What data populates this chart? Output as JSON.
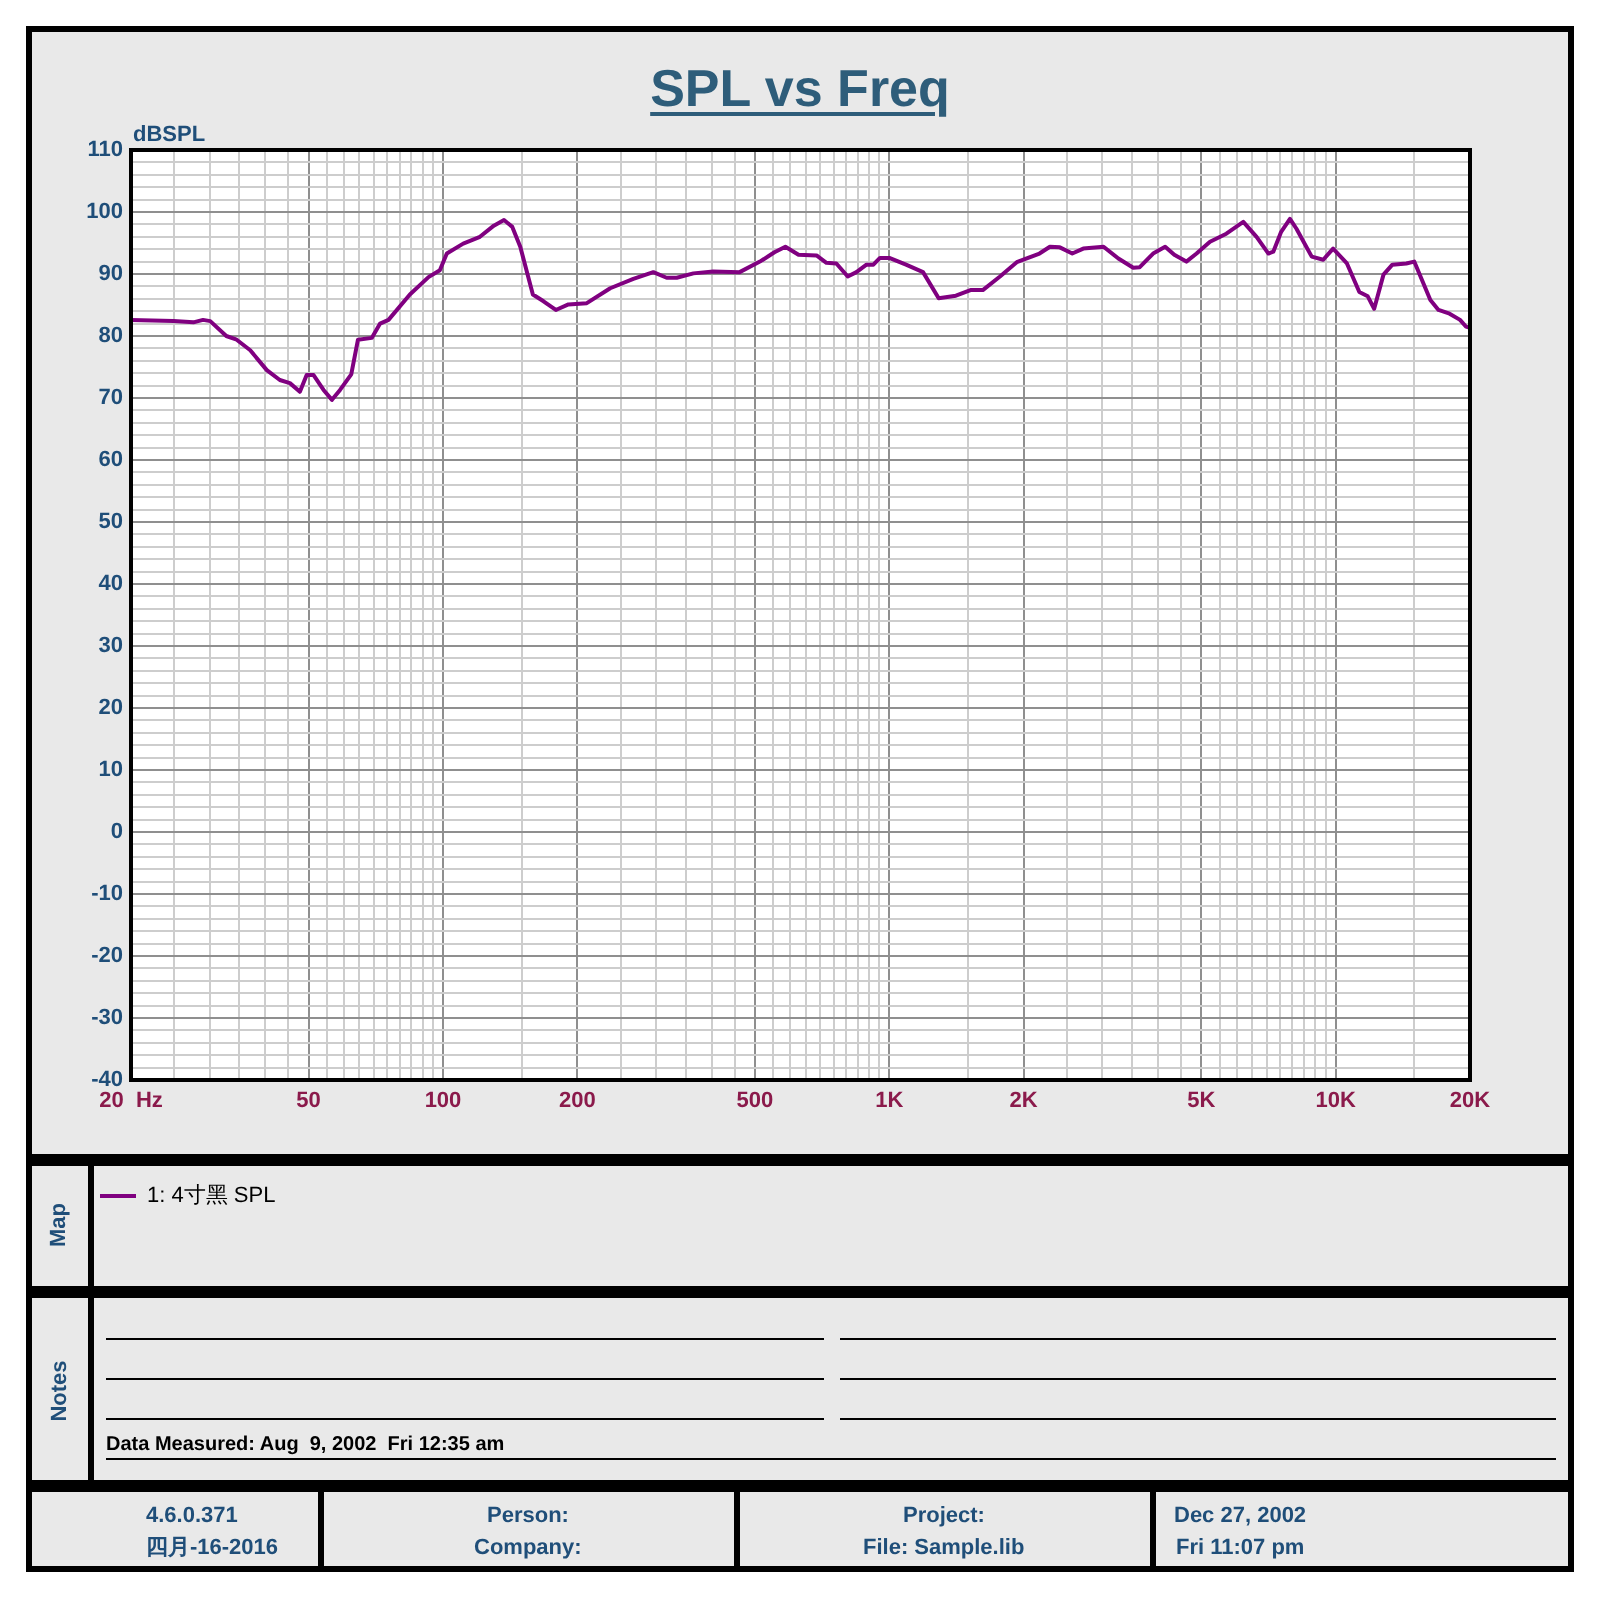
{
  "chart_data": {
    "type": "line",
    "title": "SPL vs Freq",
    "ylabel": "dBSPL",
    "x": [
      20,
      24.9,
      27.6,
      29,
      30.1,
      32.7,
      34.5,
      37,
      40.3,
      43.1,
      45.4,
      47.8,
      49.5,
      51.3,
      54,
      56.4,
      58.8,
      62.3,
      64.5,
      69.3,
      72.3,
      75.5,
      84.3,
      92.8,
      98.4,
      102,
      111,
      121,
      130,
      137,
      143,
      149,
      159,
      168,
      179,
      191,
      210,
      237,
      267,
      296,
      317,
      334,
      364,
      403,
      462,
      513,
      553,
      585,
      626,
      687,
      723,
      761,
      807,
      844,
      889,
      921,
      953,
      1000,
      1090,
      1190,
      1290,
      1410,
      1520,
      1620,
      1770,
      1930,
      2170,
      2290,
      2410,
      2570,
      2720,
      3020,
      3260,
      3520,
      3640,
      3900,
      4150,
      4350,
      4630,
      4880,
      5230,
      5690,
      6210,
      6650,
      7070,
      7250,
      7550,
      7900,
      8170,
      8840,
      9380,
      9870,
      10600,
      11300,
      11800,
      12200,
      12800,
      13400,
      14400,
      15000,
      16300,
      17000,
      18000,
      19000,
      19600,
      20000
    ],
    "series": [
      {
        "name": "1: 4寸黑 SPL",
        "color": "#800080",
        "values": [
          82.6,
          82.4,
          82.2,
          82.6,
          82.4,
          80,
          79.4,
          77.7,
          74.5,
          72.9,
          72.4,
          71,
          73.7,
          73.7,
          71.3,
          69.7,
          71.3,
          73.8,
          79.4,
          79.7,
          82,
          82.6,
          86.7,
          89.5,
          90.6,
          93.3,
          94.9,
          96,
          97.8,
          98.7,
          97.6,
          94.4,
          86.7,
          85.6,
          84.2,
          85.1,
          85.3,
          87.7,
          89.2,
          90.3,
          89.4,
          89.4,
          90.1,
          90.4,
          90.3,
          92,
          93.5,
          94.4,
          93.1,
          93,
          91.8,
          91.7,
          89.6,
          90.3,
          91.5,
          91.5,
          92.6,
          92.6,
          91.5,
          90.3,
          86.1,
          86.5,
          87.4,
          87.4,
          89.6,
          91.9,
          93.3,
          94.4,
          94.3,
          93.3,
          94.1,
          94.4,
          92.5,
          91,
          91.1,
          93.3,
          94.4,
          93.1,
          92,
          93.3,
          95.2,
          96.5,
          98.4,
          96,
          93.3,
          93.6,
          96.8,
          98.9,
          97.3,
          92.8,
          92.3,
          94.1,
          91.7,
          87.1,
          86.4,
          84.4,
          89.9,
          91.5,
          91.7,
          92,
          85.8,
          84.2,
          83.6,
          82.6,
          81.5,
          81.3
        ]
      }
    ],
    "xlim": [
      20,
      20000
    ],
    "xticks": [
      {
        "value": 20,
        "label": "20  Hz"
      },
      {
        "value": 25,
        "label": null
      },
      {
        "value": 30,
        "label": null
      },
      {
        "value": 35,
        "label": null
      },
      {
        "value": 40,
        "label": null
      },
      {
        "value": 45,
        "label": null
      },
      50,
      {
        "value": 55,
        "label": null
      },
      {
        "value": 60,
        "label": null
      },
      {
        "value": 65,
        "label": null
      },
      {
        "value": 70,
        "label": null
      },
      {
        "value": 75,
        "label": null
      },
      {
        "value": 80,
        "label": null
      },
      {
        "value": 85,
        "label": null
      },
      {
        "value": 90,
        "label": null
      },
      {
        "value": 95,
        "label": null
      },
      100,
      {
        "value": 150,
        "label": null
      },
      200,
      {
        "value": 250,
        "label": null
      },
      {
        "value": 300,
        "label": null
      },
      {
        "value": 350,
        "label": null
      },
      {
        "value": 400,
        "label": null
      },
      {
        "value": 450,
        "label": null
      },
      500,
      {
        "value": 550,
        "label": null
      },
      {
        "value": 600,
        "label": null
      },
      {
        "value": 650,
        "label": null
      },
      {
        "value": 700,
        "label": null
      },
      {
        "value": 750,
        "label": null
      },
      {
        "value": 800,
        "label": null
      },
      {
        "value": 850,
        "label": null
      },
      {
        "value": 900,
        "label": null
      },
      {
        "value": 950,
        "label": null
      },
      {
        "value": 1000,
        "label": "1K"
      },
      {
        "value": 1500,
        "label": null
      },
      {
        "value": 2000,
        "label": "2K"
      },
      {
        "value": 2500,
        "label": null
      },
      {
        "value": 3000,
        "label": null
      },
      {
        "value": 3500,
        "label": null
      },
      {
        "value": 4000,
        "label": null
      },
      {
        "value": 4500,
        "label": null
      },
      {
        "value": 5000,
        "label": "5K"
      },
      {
        "value": 5500,
        "label": null
      },
      {
        "value": 6000,
        "label": null
      },
      {
        "value": 6500,
        "label": null
      },
      {
        "value": 7000,
        "label": null
      },
      {
        "value": 7500,
        "label": null
      },
      {
        "value": 8000,
        "label": null
      },
      {
        "value": 8500,
        "label": null
      },
      {
        "value": 9000,
        "label": null
      },
      {
        "value": 9500,
        "label": null
      },
      {
        "value": 10000,
        "label": "10K"
      },
      {
        "value": 15000,
        "label": null
      },
      {
        "value": 20000,
        "label": "20K"
      }
    ],
    "ylim": [
      -40,
      110
    ],
    "yticks": [
      -40,
      {
        "value": -38,
        "label": null
      },
      {
        "value": -36,
        "label": null
      },
      {
        "value": -34,
        "label": null
      },
      {
        "value": -32,
        "label": null
      },
      -30,
      {
        "value": -28,
        "label": null
      },
      {
        "value": -26,
        "label": null
      },
      {
        "value": -24,
        "label": null
      },
      {
        "value": -22,
        "label": null
      },
      -20,
      {
        "value": -18,
        "label": null
      },
      {
        "value": -16,
        "label": null
      },
      {
        "value": -14,
        "label": null
      },
      {
        "value": -12,
        "label": null
      },
      -10,
      {
        "value": -8,
        "label": null
      },
      {
        "value": -6,
        "label": null
      },
      {
        "value": -4,
        "label": null
      },
      {
        "value": -2,
        "label": null
      },
      0,
      {
        "value": 2,
        "label": null
      },
      {
        "value": 4,
        "label": null
      },
      {
        "value": 6,
        "label": null
      },
      {
        "value": 8,
        "label": null
      },
      10,
      {
        "value": 12,
        "label": null
      },
      {
        "value": 14,
        "label": null
      },
      {
        "value": 16,
        "label": null
      },
      {
        "value": 18,
        "label": null
      },
      20,
      {
        "value": 22,
        "label": null
      },
      {
        "value": 24,
        "label": null
      },
      {
        "value": 26,
        "label": null
      },
      {
        "value": 28,
        "label": null
      },
      30,
      {
        "value": 32,
        "label": null
      },
      {
        "value": 34,
        "label": null
      },
      {
        "value": 36,
        "label": null
      },
      {
        "value": 38,
        "label": null
      },
      40,
      {
        "value": 42,
        "label": null
      },
      {
        "value": 44,
        "label": null
      },
      {
        "value": 46,
        "label": null
      },
      {
        "value": 48,
        "label": null
      },
      50,
      {
        "value": 52,
        "label": null
      },
      {
        "value": 54,
        "label": null
      },
      {
        "value": 56,
        "label": null
      },
      {
        "value": 58,
        "label": null
      },
      60,
      {
        "value": 62,
        "label": null
      },
      {
        "value": 64,
        "label": null
      },
      {
        "value": 66,
        "label": null
      },
      {
        "value": 68,
        "label": null
      },
      70,
      {
        "value": 72,
        "label": null
      },
      {
        "value": 74,
        "label": null
      },
      {
        "value": 76,
        "label": null
      },
      {
        "value": 78,
        "label": null
      },
      80,
      {
        "value": 82,
        "label": null
      },
      {
        "value": 84,
        "label": null
      },
      {
        "value": 86,
        "label": null
      },
      {
        "value": 88,
        "label": null
      },
      90,
      {
        "value": 92,
        "label": null
      },
      {
        "value": 94,
        "label": null
      },
      {
        "value": 96,
        "label": null
      },
      {
        "value": 98,
        "label": null
      },
      100,
      {
        "value": 102,
        "label": null
      },
      {
        "value": 104,
        "label": null
      },
      {
        "value": 106,
        "label": null
      },
      {
        "value": 108,
        "label": null
      },
      110
    ],
    "log": "x",
    "grid": true,
    "legend": "bottom",
    "marker": "none",
    "line_style": "solid",
    "annotations": [
      "Map",
      "Notes",
      "Data Measured: Aug  9, 2002  Fri 12:35 am",
      "4.6.0.371",
      "四月-16-2016",
      "Person:",
      "Company:",
      "Project:",
      "File: Sample.lib",
      "Dec 27, 2002",
      "Fri 11:07 pm"
    ]
  }
}
